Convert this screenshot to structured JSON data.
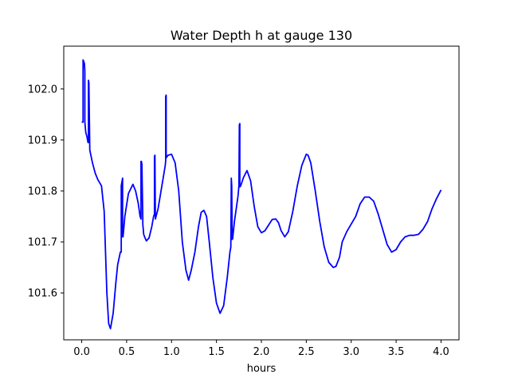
{
  "chart_data": {
    "type": "line",
    "title": "Water Depth h at gauge 130",
    "xlabel": "hours",
    "ylabel": "",
    "xlim": [
      -0.2,
      4.2
    ],
    "ylim": [
      101.508,
      102.084
    ],
    "xticks": [
      0.0,
      0.5,
      1.0,
      1.5,
      2.0,
      2.5,
      3.0,
      3.5,
      4.0
    ],
    "xtick_labels": [
      "0.0",
      "0.5",
      "1.0",
      "1.5",
      "2.0",
      "2.5",
      "3.0",
      "3.5",
      "4.0"
    ],
    "yticks": [
      101.6,
      101.7,
      101.8,
      101.9,
      102.0
    ],
    "ytick_labels": [
      "101.6",
      "101.7",
      "101.8",
      "101.9",
      "102.0"
    ],
    "grid": false,
    "series": [
      {
        "color": "#0000ff",
        "x": [
          0.0,
          0.015,
          0.015,
          0.02,
          0.03,
          0.035,
          0.035,
          0.045,
          0.06,
          0.07,
          0.075,
          0.075,
          0.08,
          0.09,
          0.12,
          0.15,
          0.18,
          0.22,
          0.25,
          0.28,
          0.3,
          0.32,
          0.35,
          0.38,
          0.4,
          0.43,
          0.44,
          0.44,
          0.455,
          0.455,
          0.46,
          0.48,
          0.52,
          0.57,
          0.6,
          0.63,
          0.65,
          0.66,
          0.66,
          0.665,
          0.67,
          0.68,
          0.68,
          0.69,
          0.7,
          0.72,
          0.75,
          0.78,
          0.8,
          0.81,
          0.81,
          0.815,
          0.82,
          0.85,
          0.9,
          0.93,
          0.935,
          0.935,
          0.94,
          0.94,
          0.96,
          1.0,
          1.04,
          1.08,
          1.12,
          1.16,
          1.19,
          1.22,
          1.26,
          1.3,
          1.33,
          1.36,
          1.39,
          1.42,
          1.46,
          1.5,
          1.54,
          1.58,
          1.62,
          1.65,
          1.66,
          1.665,
          1.665,
          1.67,
          1.675,
          1.675,
          1.68,
          1.7,
          1.74,
          1.75,
          1.755,
          1.76,
          1.76,
          1.77,
          1.8,
          1.84,
          1.88,
          1.92,
          1.96,
          2.0,
          2.04,
          2.08,
          2.12,
          2.16,
          2.19,
          2.22,
          2.26,
          2.3,
          2.35,
          2.4,
          2.45,
          2.5,
          2.52,
          2.55,
          2.6,
          2.65,
          2.7,
          2.75,
          2.8,
          2.83,
          2.87,
          2.9,
          2.95,
          3.0,
          3.05,
          3.1,
          3.15,
          3.2,
          3.25,
          3.3,
          3.35,
          3.4,
          3.45,
          3.5,
          3.55,
          3.6,
          3.65,
          3.7,
          3.75,
          3.8,
          3.85,
          3.9,
          3.95,
          4.0
        ],
        "y": [
          101.935,
          101.935,
          102.057,
          102.055,
          102.05,
          102.035,
          101.935,
          101.915,
          101.905,
          101.895,
          101.895,
          102.017,
          102.012,
          101.88,
          101.855,
          101.835,
          101.822,
          101.81,
          101.76,
          101.6,
          101.54,
          101.53,
          101.56,
          101.62,
          101.655,
          101.68,
          101.68,
          101.81,
          101.825,
          101.71,
          101.71,
          101.75,
          101.795,
          101.813,
          101.8,
          101.775,
          101.75,
          101.745,
          101.858,
          101.858,
          101.852,
          101.745,
          101.735,
          101.715,
          101.71,
          101.702,
          101.708,
          101.73,
          101.75,
          101.755,
          101.868,
          101.87,
          101.745,
          101.765,
          101.818,
          101.85,
          101.86,
          101.985,
          101.988,
          101.865,
          101.87,
          101.872,
          101.855,
          101.8,
          101.7,
          101.645,
          101.625,
          101.645,
          101.68,
          101.73,
          101.758,
          101.762,
          101.75,
          101.7,
          101.63,
          101.58,
          101.56,
          101.575,
          101.63,
          101.68,
          101.69,
          101.815,
          101.825,
          101.81,
          101.71,
          101.705,
          101.706,
          101.74,
          101.79,
          101.81,
          101.93,
          101.932,
          101.808,
          101.81,
          101.826,
          101.84,
          101.82,
          101.77,
          101.73,
          101.718,
          101.722,
          101.733,
          101.744,
          101.745,
          101.738,
          101.722,
          101.71,
          101.72,
          101.76,
          101.81,
          101.85,
          101.872,
          101.87,
          101.855,
          101.8,
          101.74,
          101.69,
          101.66,
          101.65,
          101.652,
          101.67,
          101.7,
          101.72,
          101.735,
          101.75,
          101.775,
          101.788,
          101.788,
          101.78,
          101.755,
          101.725,
          101.695,
          101.68,
          101.685,
          101.7,
          101.71,
          101.713,
          101.713,
          101.715,
          101.725,
          101.74,
          101.765,
          101.785,
          101.802
        ]
      }
    ]
  }
}
